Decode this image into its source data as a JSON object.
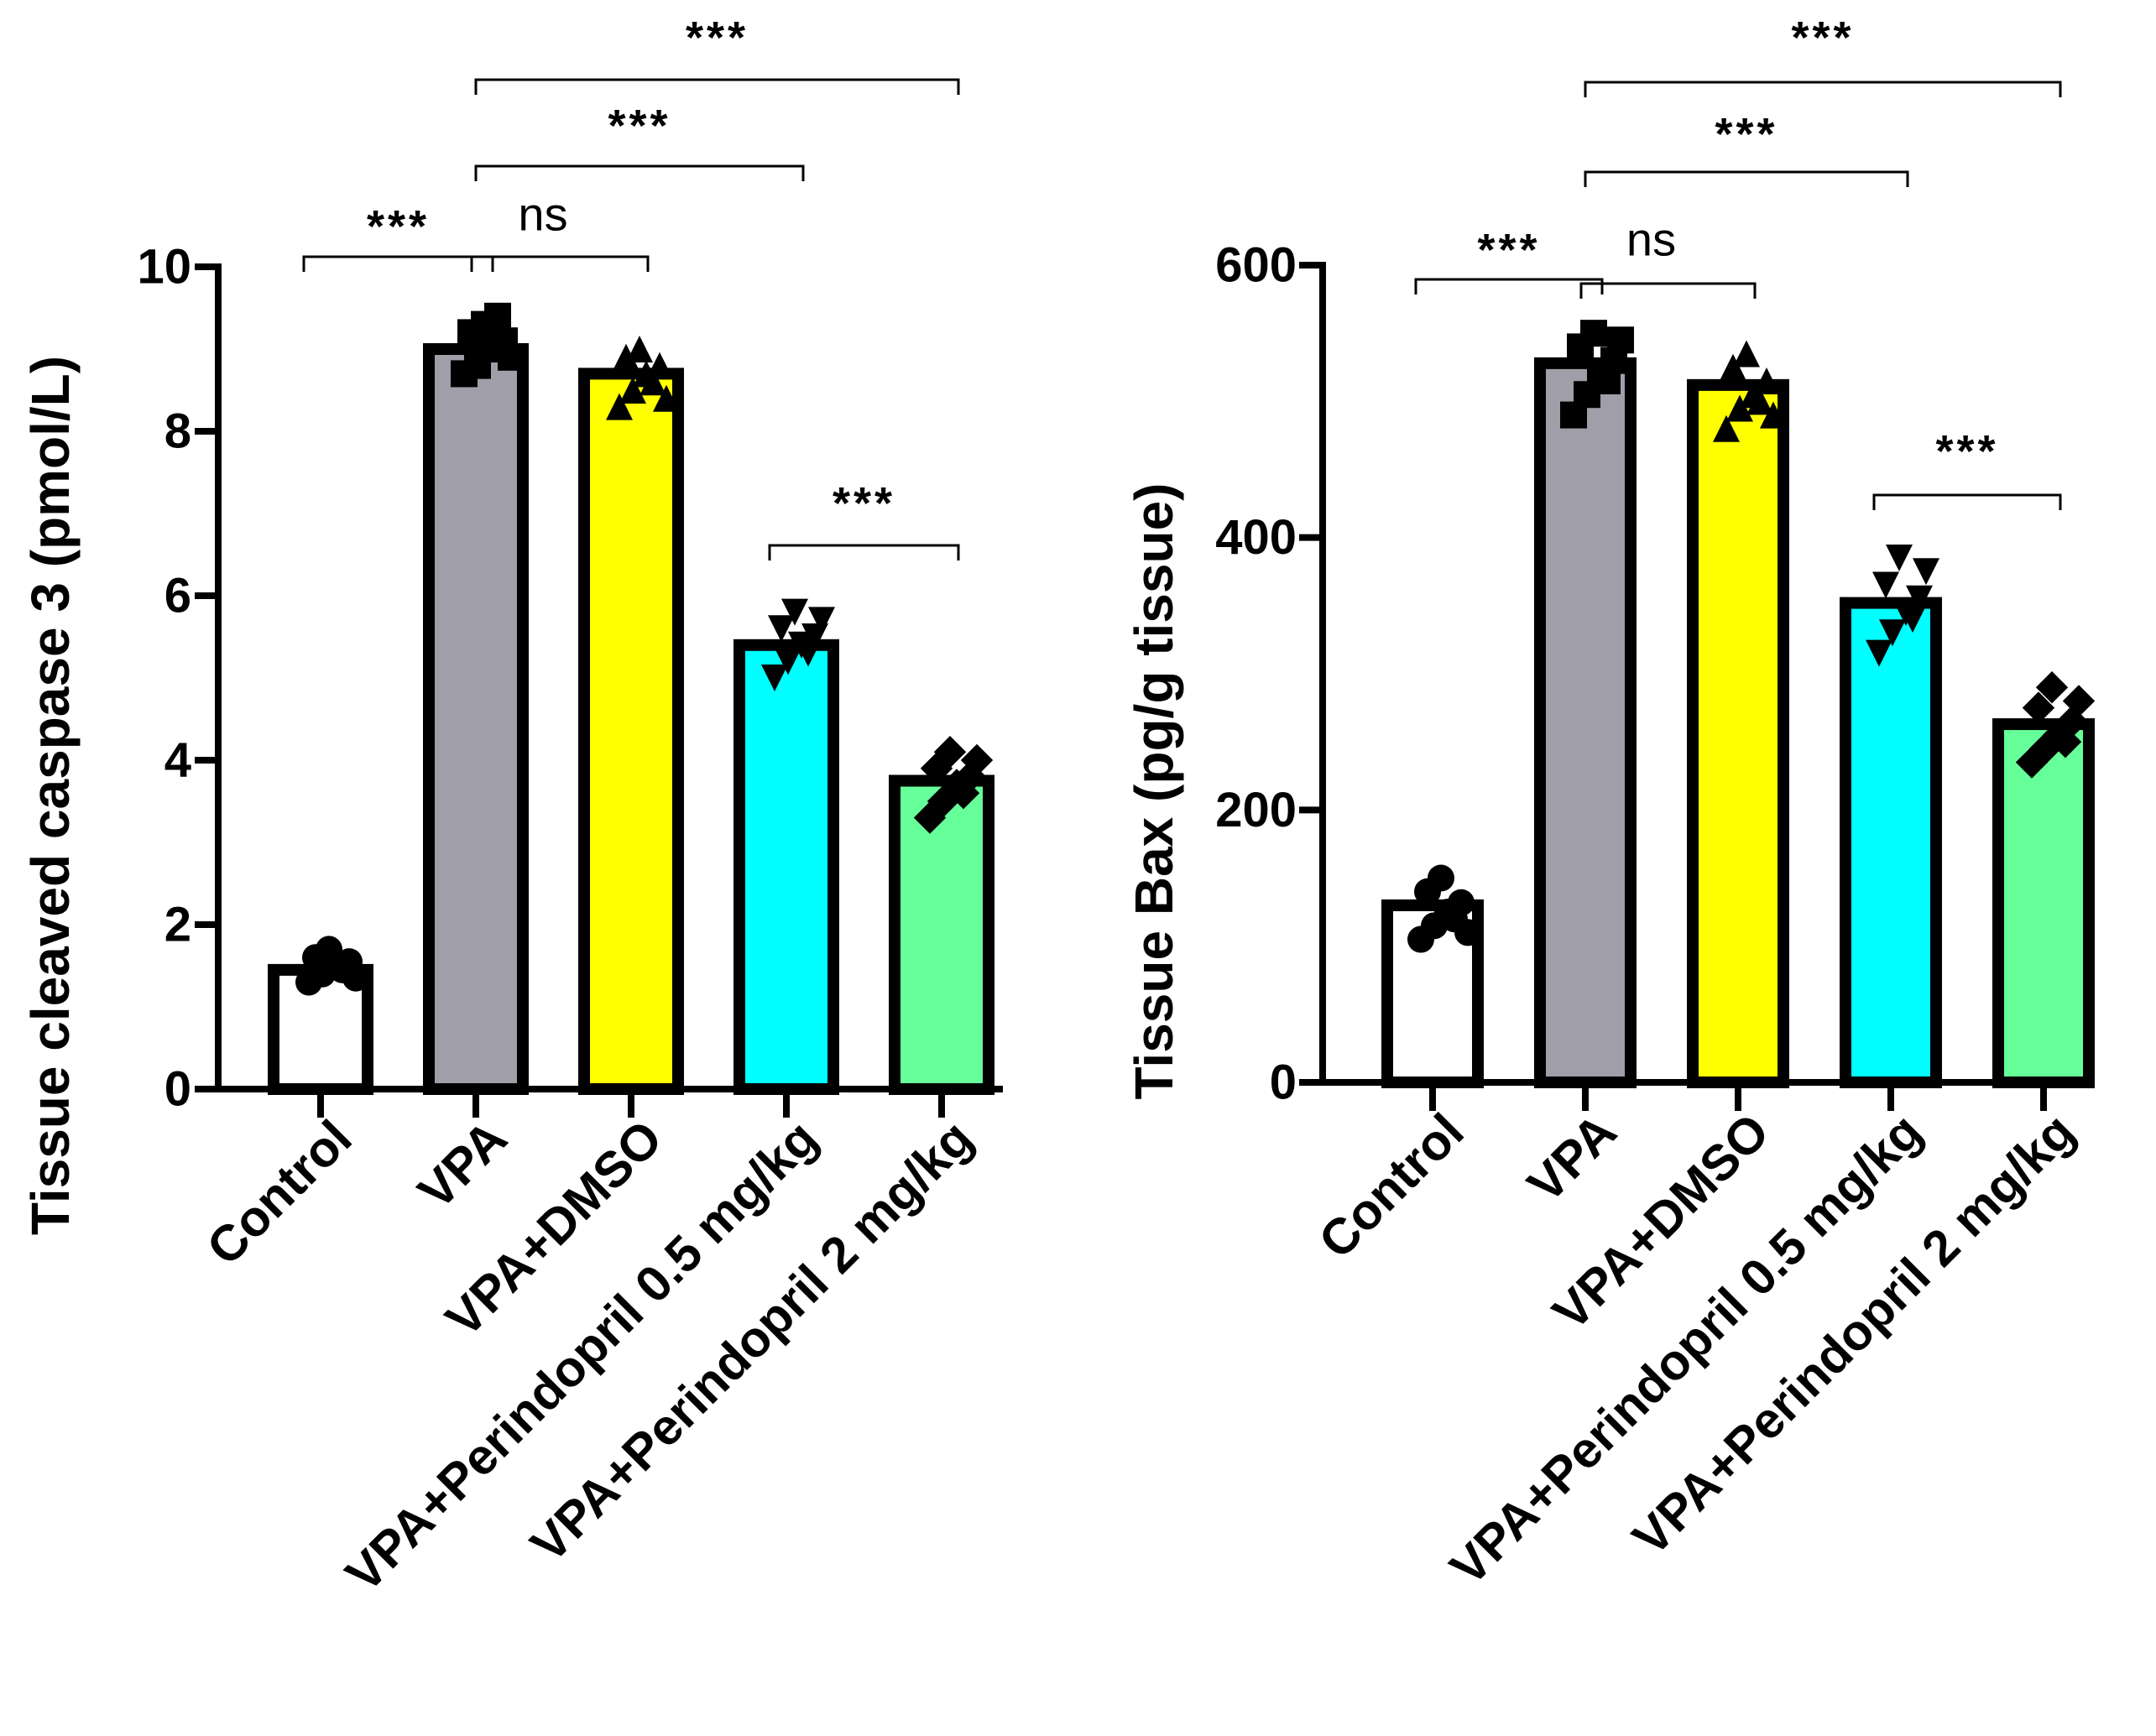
{
  "chart_data": [
    {
      "type": "bar",
      "ylabel": "Tissue cleaved caspase 3 (pmol/L)",
      "xlabel": "",
      "ylim": [
        0,
        10
      ],
      "yticks": [
        0,
        2,
        4,
        6,
        8,
        10
      ],
      "categories": [
        "Control",
        "VPA",
        "VPA+DMSO",
        "VPA+Perindopril 0.5 mg/kg",
        "VPA+Perindopril 2 mg/kg"
      ],
      "values": [
        1.45,
        9.0,
        8.7,
        5.4,
        3.75
      ],
      "colors": [
        "#ffffff",
        "#a09ea8",
        "#ffff00",
        "#00ffff",
        "#66ff99"
      ],
      "markers": [
        "circle",
        "square",
        "triangle-up",
        "triangle-down",
        "diamond"
      ],
      "points": [
        [
          1.3,
          1.4,
          1.5,
          1.55,
          1.6,
          1.7,
          1.45,
          1.35
        ],
        [
          8.7,
          8.8,
          9.0,
          9.1,
          9.2,
          9.3,
          9.4,
          8.9
        ],
        [
          8.3,
          8.5,
          8.7,
          8.8,
          8.9,
          9.0,
          8.6,
          8.4
        ],
        [
          5.0,
          5.2,
          5.4,
          5.5,
          5.6,
          5.8,
          5.3,
          5.7
        ],
        [
          3.3,
          3.5,
          3.7,
          3.8,
          3.9,
          4.1,
          3.6,
          4.0
        ]
      ],
      "significance": [
        {
          "from": 0,
          "to": 1,
          "label": "***"
        },
        {
          "from": 1,
          "to": 2,
          "label": "ns"
        },
        {
          "from": 1,
          "to": 3,
          "label": "***"
        },
        {
          "from": 1,
          "to": 4,
          "label": "***"
        },
        {
          "from": 3,
          "to": 4,
          "label": "***"
        }
      ]
    },
    {
      "type": "bar",
      "ylabel": "Tissue Bax (pg/g tissue)",
      "xlabel": "",
      "ylim": [
        0,
        600
      ],
      "yticks": [
        0,
        200,
        400,
        600
      ],
      "categories": [
        "Control",
        "VPA",
        "VPA+DMSO",
        "VPA+Perindopril 0.5 mg/kg",
        "VPA+Perindopril 2 mg/kg"
      ],
      "values": [
        130,
        528,
        512,
        352,
        263
      ],
      "colors": [
        "#ffffff",
        "#a09ea8",
        "#ffff00",
        "#00ffff",
        "#66ff99"
      ],
      "markers": [
        "circle",
        "square",
        "triangle-up",
        "triangle-down",
        "diamond"
      ],
      "points": [
        [
          105,
          115,
          125,
          132,
          140,
          150,
          120,
          110
        ],
        [
          490,
          505,
          520,
          530,
          540,
          550,
          515,
          545
        ],
        [
          480,
          495,
          505,
          515,
          525,
          535,
          500,
          490
        ],
        [
          315,
          330,
          345,
          355,
          365,
          385,
          340,
          375
        ],
        [
          235,
          245,
          255,
          265,
          275,
          290,
          250,
          280
        ]
      ],
      "significance": [
        {
          "from": 0,
          "to": 1,
          "label": "***"
        },
        {
          "from": 1,
          "to": 2,
          "label": "ns"
        },
        {
          "from": 1,
          "to": 3,
          "label": "***"
        },
        {
          "from": 1,
          "to": 4,
          "label": "***"
        },
        {
          "from": 3,
          "to": 4,
          "label": "***"
        }
      ]
    }
  ]
}
